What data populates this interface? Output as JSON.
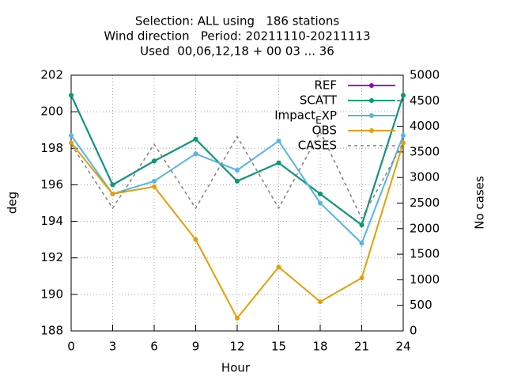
{
  "chart_data": {
    "type": "line",
    "title": [
      "Selection: ALL using   186 stations",
      "Wind direction   Period: 20211110-20211113",
      "Used  00,06,12,18 + 00 03 ... 36"
    ],
    "xlabel": "Hour",
    "ylabel": "deg",
    "y2label": "No cases",
    "x": [
      0,
      3,
      6,
      9,
      12,
      15,
      18,
      21,
      24
    ],
    "series": [
      {
        "name": "REF",
        "color": "#9400d3",
        "values": [
          200.9,
          196.0,
          197.3,
          198.5,
          196.2,
          197.2,
          195.5,
          193.8,
          200.9
        ]
      },
      {
        "name": "SCATT",
        "color": "#009e73",
        "values": [
          200.9,
          196.0,
          197.3,
          198.5,
          196.2,
          197.2,
          195.5,
          193.8,
          200.9
        ]
      },
      {
        "name": "Impact_EXP",
        "color": "#56b4e9",
        "values": [
          198.7,
          195.5,
          196.2,
          197.7,
          196.8,
          198.4,
          195.0,
          192.8,
          198.7
        ]
      },
      {
        "name": "OBS",
        "color": "#e69f00",
        "values": [
          198.3,
          195.5,
          195.9,
          193.0,
          188.7,
          191.5,
          189.6,
          190.9,
          198.3
        ]
      },
      {
        "name": "CASES",
        "color": "#808080",
        "axis": "y2",
        "dashed": true,
        "values": [
          3650,
          2400,
          3650,
          2400,
          3800,
          2400,
          3900,
          2200,
          3680
        ]
      }
    ],
    "xlim": [
      0,
      24
    ],
    "xticks": [
      0,
      3,
      6,
      9,
      12,
      15,
      18,
      21,
      24
    ],
    "ylim": [
      188,
      202
    ],
    "yticks": [
      188,
      190,
      192,
      194,
      196,
      198,
      200,
      202
    ],
    "y2lim": [
      0,
      5000
    ],
    "y2ticks": [
      0,
      500,
      1000,
      1500,
      2000,
      2500,
      3000,
      3500,
      4000,
      4500,
      5000
    ],
    "grid": true,
    "legend": "top-right"
  }
}
